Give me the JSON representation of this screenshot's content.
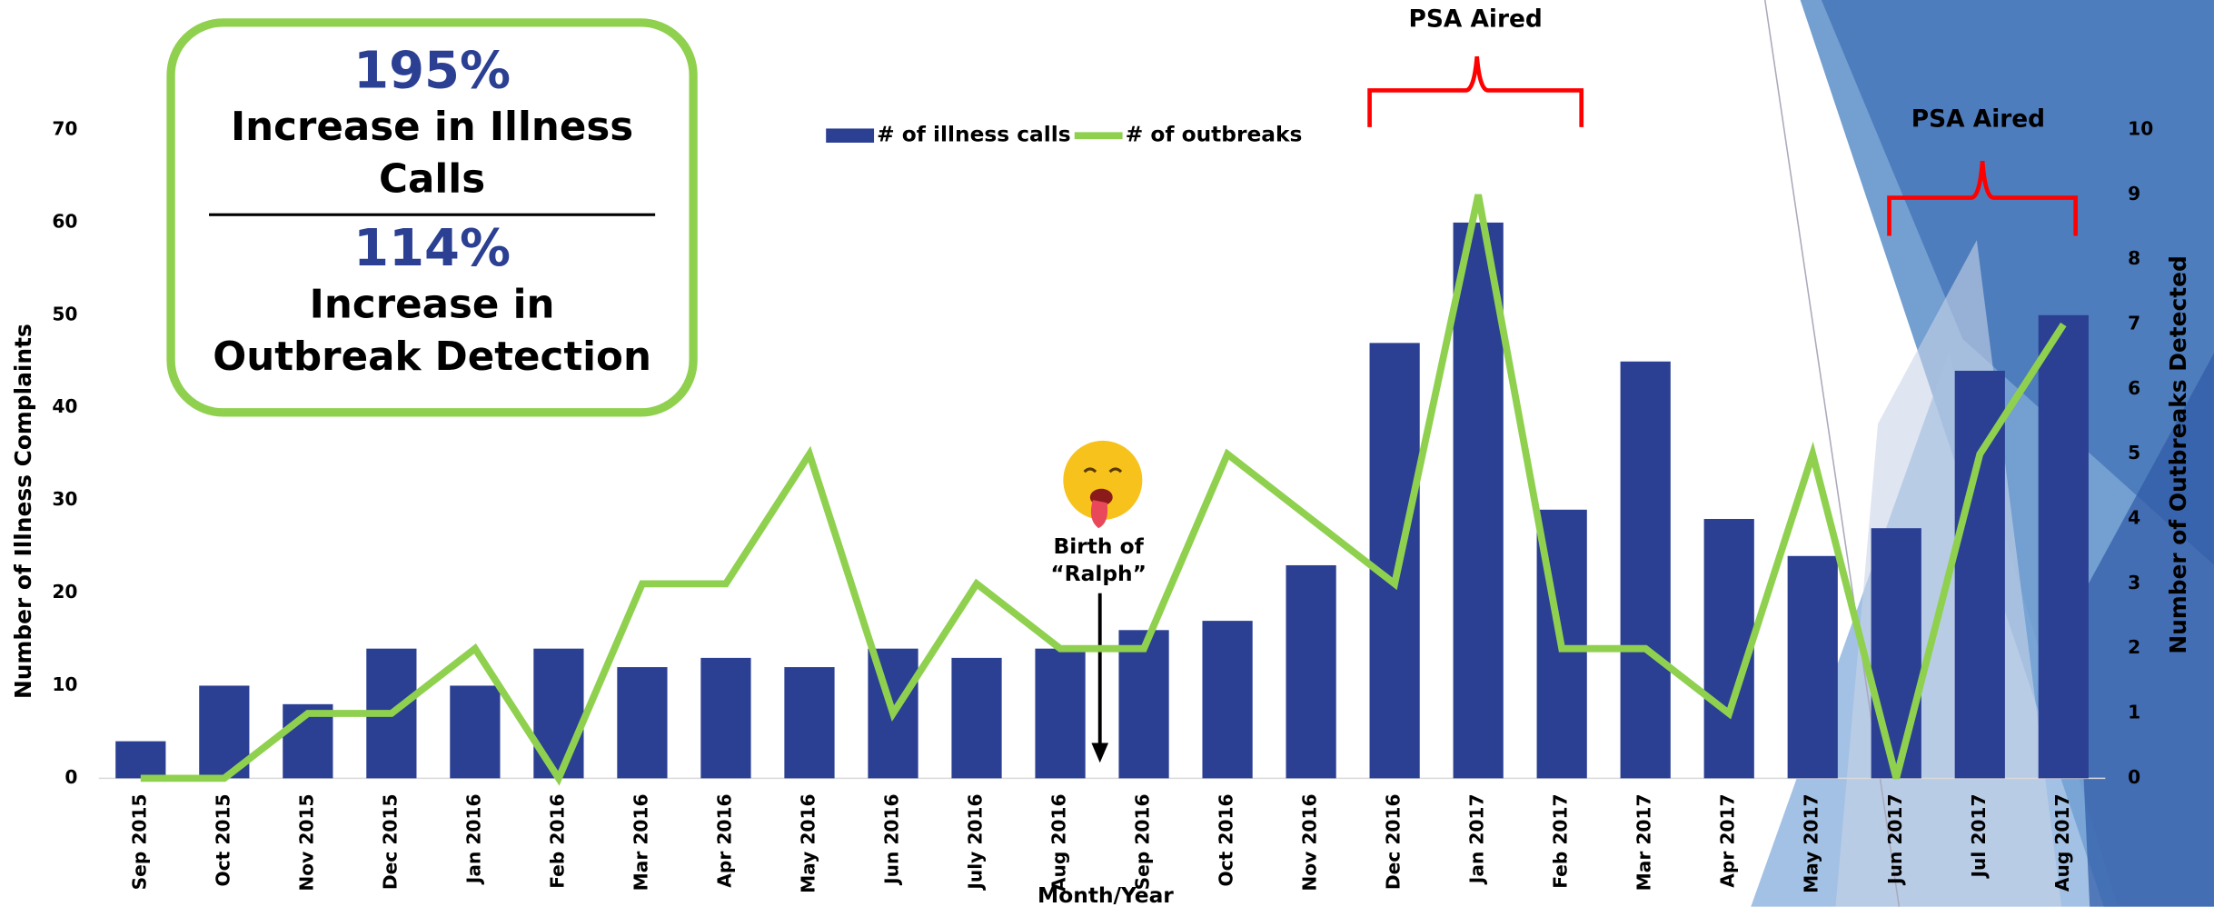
{
  "chart_data": {
    "type": "bar",
    "categories": [
      "Sep 2015",
      "Oct 2015",
      "Nov 2015",
      "Dec 2015",
      "Jan 2016",
      "Feb 2016",
      "Mar 2016",
      "Apr 2016",
      "May 2016",
      "Jun 2016",
      "July 2016",
      "Aug 2016",
      "Sep 2016",
      "Oct 2016",
      "Nov 2016",
      "Dec 2016",
      "Jan 2017",
      "Feb 2017",
      "Mar 2017",
      "Apr 2017",
      "May 2017",
      "Jun 2017",
      "Jul 2017",
      "Aug 2017"
    ],
    "series": [
      {
        "name": "# of illness calls",
        "type": "bar",
        "color": "#2b3f93",
        "values": [
          4,
          10,
          8,
          14,
          10,
          14,
          12,
          13,
          12,
          14,
          13,
          14,
          16,
          17,
          23,
          47,
          60,
          29,
          45,
          28,
          24,
          27,
          44,
          50
        ]
      },
      {
        "name": "# of outbreaks",
        "type": "line",
        "axis": "y2",
        "color": "#8fd14f",
        "values": [
          0,
          0,
          1,
          1,
          2,
          0,
          3,
          3,
          5,
          1,
          3,
          2,
          2,
          5,
          4,
          3,
          9,
          2,
          2,
          1,
          5,
          0,
          5,
          7
        ]
      }
    ],
    "ylim": [
      0,
      70
    ],
    "yticks": [
      0,
      10,
      20,
      30,
      40,
      50,
      60,
      70
    ],
    "y2lim": [
      0,
      10
    ],
    "y2ticks": [
      0,
      1,
      2,
      3,
      4,
      5,
      6,
      7,
      8,
      9,
      10
    ],
    "x_label": "Month/Year",
    "y_label": "Number of Illness Complaints",
    "y2_label": "Number of Outbreaks Detected",
    "annotations": [
      "PSA Aired",
      "PSA Aired",
      "Birth of “Ralph”"
    ],
    "callout": {
      "stat1": "195%",
      "text1": "Increase in Illness Calls",
      "stat2": "114%",
      "text2": "Increase in Outbreak Detection"
    }
  }
}
